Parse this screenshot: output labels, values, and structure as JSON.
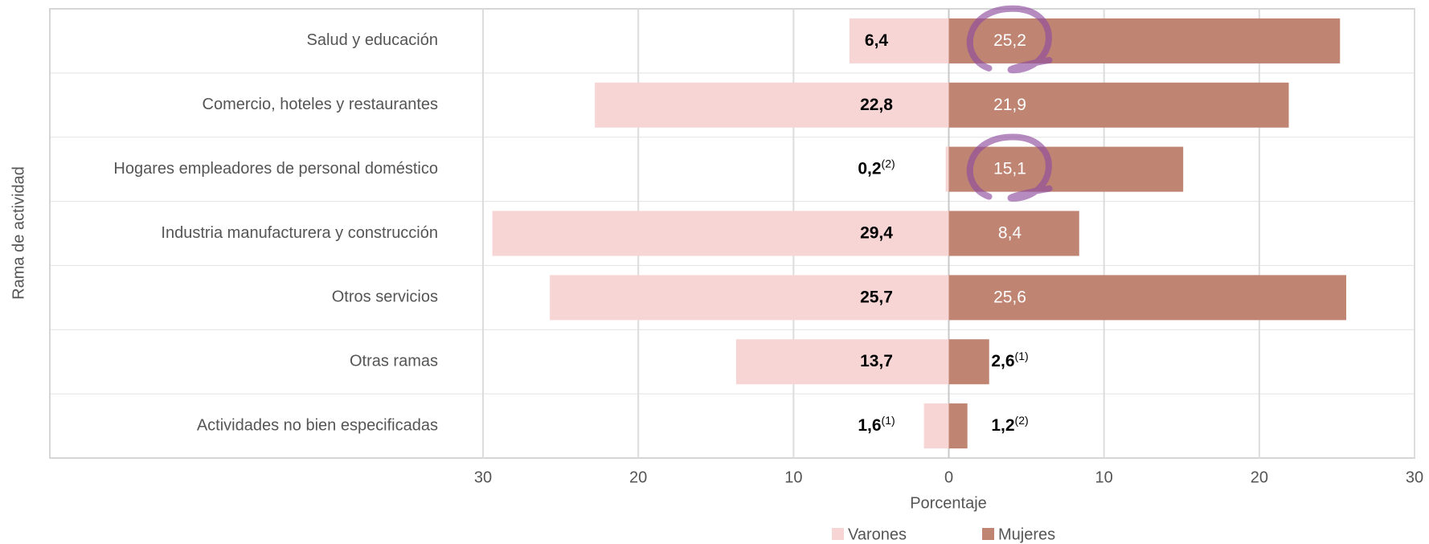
{
  "chart_data": {
    "type": "butterfly-bar",
    "y_label": "Rama de actividad",
    "x_label": "Porcentaje",
    "categories": [
      "Salud y educación",
      "Comercio, hoteles y restaurantes",
      "Hogares empleadores de personal doméstico",
      "Industria manufacturera y construcción",
      "Otros servicios",
      "Otras ramas",
      "Actividades no bien especificadas"
    ],
    "series": [
      {
        "name": "Varones",
        "color": "#f7d5d5",
        "side": "left",
        "values": [
          6.4,
          22.8,
          0.2,
          29.4,
          25.7,
          13.7,
          1.6
        ],
        "value_labels": [
          "6,4",
          "22,8",
          "0,2",
          "29,4",
          "25,7",
          "13,7",
          "1,6"
        ],
        "notes": [
          null,
          null,
          "(2)",
          null,
          null,
          null,
          "(1)"
        ]
      },
      {
        "name": "Mujeres",
        "color": "#bf8472",
        "side": "right",
        "values": [
          25.2,
          21.9,
          15.1,
          8.4,
          25.6,
          2.6,
          1.2
        ],
        "value_labels": [
          "25,2",
          "21,9",
          "15,1",
          "8,4",
          "25,6",
          "2,6",
          "1,2"
        ],
        "notes": [
          null,
          null,
          null,
          null,
          null,
          "(1)",
          "(2)"
        ]
      }
    ],
    "xlim": [
      -30,
      30
    ],
    "xticks": [
      {
        "value": -30,
        "label": "30"
      },
      {
        "value": -20,
        "label": "20"
      },
      {
        "value": -10,
        "label": "10"
      },
      0,
      10,
      20,
      30
    ],
    "grid": true,
    "legend": "bottom"
  }
}
